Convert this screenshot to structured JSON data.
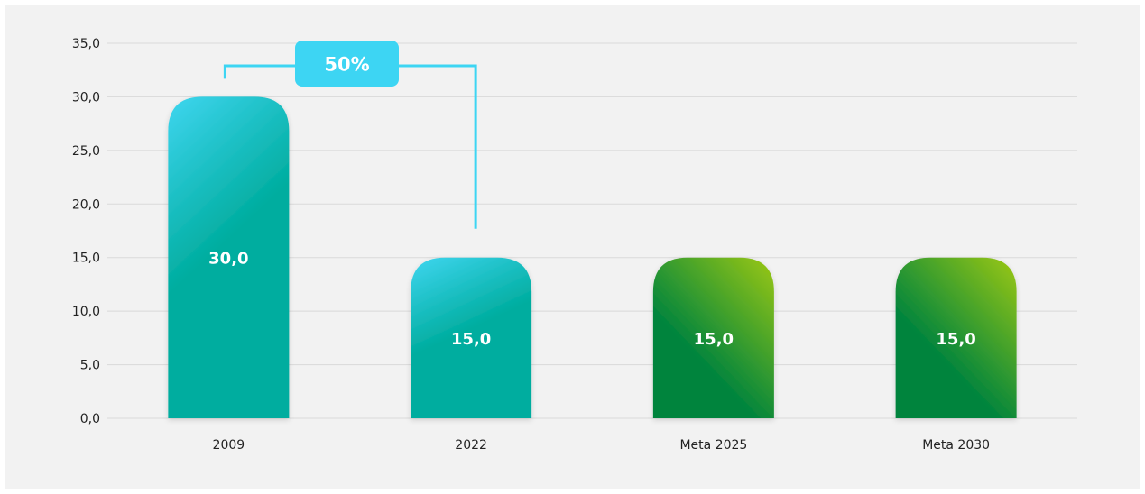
{
  "chart_data": {
    "type": "bar",
    "categories": [
      "2009",
      "2022",
      "Meta 2025",
      "Meta 2030"
    ],
    "values": [
      30.0,
      15.0,
      15.0,
      15.0
    ],
    "value_labels": [
      "30,0",
      "15,0",
      "15,0",
      "15,0"
    ],
    "yticks": [
      "0,0",
      "5,0",
      "10,0",
      "15,0",
      "20,0",
      "25,0",
      "30,0",
      "35,0"
    ],
    "ylim": [
      0,
      35
    ],
    "grid": true,
    "title": "",
    "xlabel": "",
    "ylabel": "",
    "bar_styles": [
      "teal",
      "teal",
      "green",
      "green"
    ],
    "annotation": {
      "label": "50%",
      "from_category": "2009",
      "to_category": "2022"
    }
  },
  "colors": {
    "panel_bg": "#f2f2f2",
    "grid": "#d9d9d9",
    "teal_top": "#3fd6f0",
    "teal_bottom": "#00ad9f",
    "green_top": "#9cc814",
    "green_bottom": "#00843d",
    "callout": "#3dd5f3"
  }
}
